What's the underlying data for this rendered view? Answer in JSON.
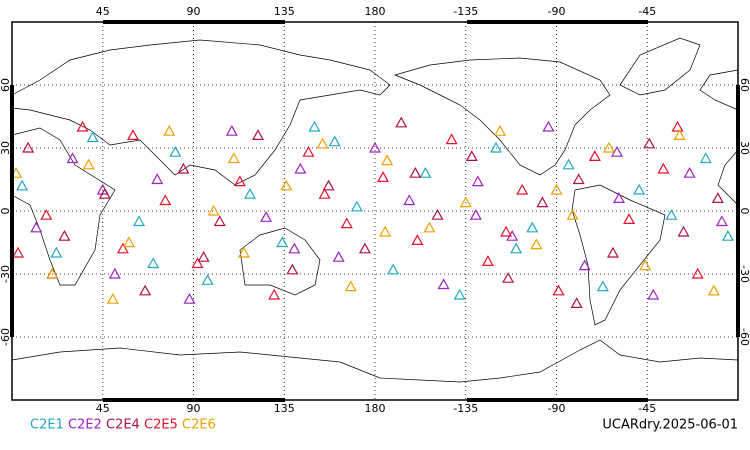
{
  "chart_data": {
    "type": "map_scatter",
    "title": "UCARdry.2025-06-01",
    "xlim": [
      0,
      360
    ],
    "ylim": [
      -90,
      90
    ],
    "xticks": [
      45,
      90,
      135,
      180,
      {
        "value": 225,
        "label": "-135"
      },
      {
        "value": 270,
        "label": "-90"
      },
      {
        "value": 315,
        "label": "-45"
      }
    ],
    "yticks": [
      60,
      30,
      0,
      -30,
      -60
    ],
    "grid": true,
    "series": [
      {
        "name": "C2E1",
        "color": "#20a8c0",
        "x": [
          5,
          22,
          40,
          63,
          81,
          97,
          118,
          134,
          150,
          171,
          189,
          205,
          222,
          240,
          258,
          276,
          293,
          311,
          327,
          344,
          355,
          70,
          160,
          250
        ],
        "values": [
          12,
          -20,
          35,
          -5,
          28,
          -33,
          8,
          -15,
          40,
          2,
          -28,
          18,
          -40,
          30,
          -8,
          22,
          -36,
          10,
          -2,
          25,
          -12,
          -25,
          33,
          -18
        ]
      },
      {
        "name": "C2E2",
        "color": "#a020c0",
        "x": [
          12,
          30,
          51,
          72,
          88,
          109,
          126,
          143,
          162,
          180,
          197,
          214,
          231,
          248,
          266,
          284,
          301,
          318,
          336,
          352,
          45,
          140,
          230,
          300
        ],
        "values": [
          -8,
          25,
          -30,
          15,
          -42,
          38,
          -3,
          20,
          -22,
          30,
          5,
          -35,
          14,
          -12,
          40,
          -26,
          6,
          -40,
          18,
          -5,
          10,
          -18,
          -2,
          28
        ]
      },
      {
        "name": "C2E4",
        "color": "#b01040",
        "x": [
          8,
          26,
          46,
          66,
          85,
          103,
          122,
          139,
          157,
          175,
          193,
          211,
          228,
          246,
          263,
          281,
          298,
          316,
          333,
          350,
          95,
          200,
          280,
          20
        ],
        "values": [
          30,
          -12,
          8,
          -38,
          20,
          -5,
          36,
          -28,
          12,
          -18,
          42,
          -2,
          26,
          -32,
          4,
          15,
          -20,
          32,
          -10,
          6,
          -22,
          18,
          -44,
          -30
        ]
      },
      {
        "name": "C2E5",
        "color": "#e8102c",
        "x": [
          17,
          35,
          55,
          76,
          92,
          113,
          130,
          147,
          166,
          184,
          201,
          218,
          236,
          253,
          271,
          289,
          306,
          323,
          340,
          3,
          60,
          155,
          245,
          330
        ],
        "values": [
          -2,
          40,
          -18,
          5,
          -25,
          14,
          -40,
          28,
          -6,
          16,
          -14,
          34,
          -24,
          10,
          -38,
          26,
          -4,
          20,
          -30,
          -20,
          36,
          8,
          -10,
          40
        ]
      },
      {
        "name": "C2E6",
        "color": "#f0a000",
        "x": [
          2,
          20,
          38,
          58,
          78,
          100,
          115,
          136,
          154,
          168,
          186,
          207,
          225,
          242,
          260,
          278,
          296,
          314,
          331,
          348,
          110,
          185,
          270,
          50
        ],
        "values": [
          18,
          -30,
          22,
          -15,
          38,
          0,
          -20,
          12,
          32,
          -36,
          24,
          -8,
          4,
          38,
          -16,
          -2,
          30,
          -26,
          36,
          -38,
          25,
          -10,
          10,
          -42
        ]
      }
    ]
  }
}
